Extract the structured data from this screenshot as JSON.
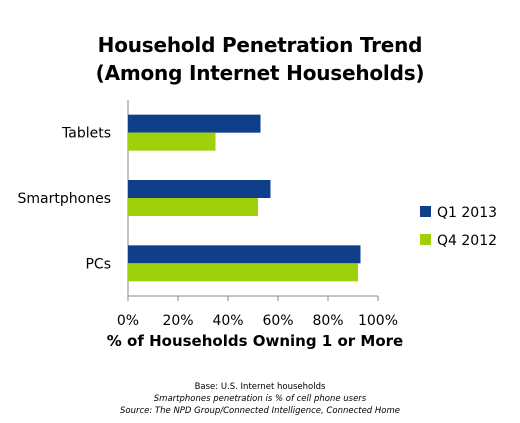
{
  "chart_data": {
    "type": "bar",
    "orientation": "horizontal",
    "title": "Household Penetration Trend",
    "subtitle": "(Among Internet Households)",
    "categories": [
      "Tablets",
      "Smartphones",
      "PCs"
    ],
    "series": [
      {
        "name": "Q1 2013",
        "color": "#0f3f8a",
        "values": [
          53,
          57,
          93
        ]
      },
      {
        "name": "Q4 2012",
        "color": "#9ed10b",
        "values": [
          35,
          52,
          92
        ]
      }
    ],
    "xlabel": "% of Households Owning 1 or More",
    "ylabel": "",
    "xlim": [
      0,
      100
    ],
    "x_ticks": [
      "0%",
      "20%",
      "40%",
      "60%",
      "80%",
      "100%"
    ],
    "grid": false,
    "legend_position": "right"
  },
  "footnotes": {
    "base": "Base: U.S. Internet households",
    "note": "Smartphones penetration is % of cell phone users",
    "source": "Source: The NPD Group/Connected Intelligence, Connected Home"
  }
}
